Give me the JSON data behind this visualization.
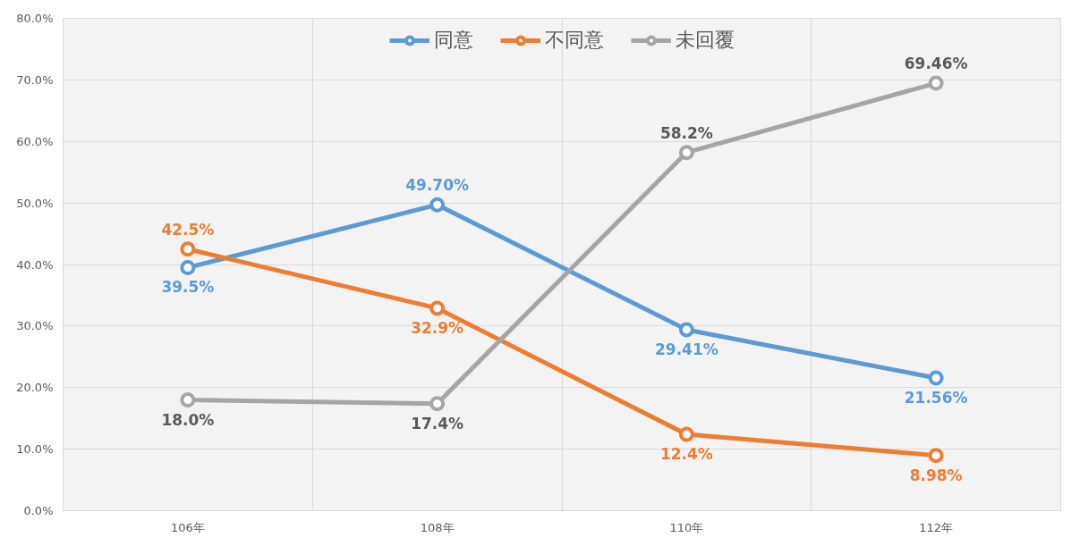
{
  "chart_data": {
    "type": "line",
    "categories": [
      "106年",
      "108年",
      "110年",
      "112年"
    ],
    "series": [
      {
        "name": "同意",
        "color": "#5b9bd5",
        "values": [
          39.5,
          49.7,
          29.41,
          21.56
        ],
        "value_labels": [
          "39.5%",
          "49.70%",
          "29.41%",
          "21.56%"
        ]
      },
      {
        "name": "不同意",
        "color": "#ed7d31",
        "values": [
          42.5,
          32.9,
          12.4,
          8.98
        ],
        "value_labels": [
          "42.5%",
          "32.9%",
          "12.4%",
          "8.98%"
        ]
      },
      {
        "name": "未回覆",
        "color": "#a5a5a5",
        "values": [
          18.0,
          17.4,
          58.2,
          69.46
        ],
        "value_labels": [
          "18.0%",
          "17.4%",
          "58.2%",
          "69.46%"
        ]
      }
    ],
    "ylim": [
      0,
      80
    ],
    "yticks": [
      {
        "value": 0,
        "label": "0.0%"
      },
      {
        "value": 10,
        "label": "10.0%"
      },
      {
        "value": 20,
        "label": "20.0%"
      },
      {
        "value": 30,
        "label": "30.0%"
      },
      {
        "value": 40,
        "label": "40.0%"
      },
      {
        "value": 50,
        "label": "50.0%"
      },
      {
        "value": 60,
        "label": "60.0%"
      },
      {
        "value": 70,
        "label": "70.0%"
      },
      {
        "value": 80,
        "label": "80.0%"
      }
    ],
    "grid": true,
    "legend": "top",
    "marker": "circle",
    "line_style": "solid"
  }
}
